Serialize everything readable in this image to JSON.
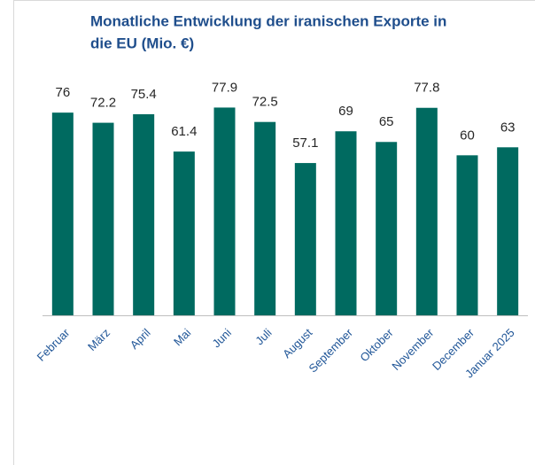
{
  "chart_data": {
    "type": "bar",
    "title": [
      "Monatliche Entwicklung der iranischen Exporte in",
      "die EU (Mio. €)"
    ],
    "categories": [
      "Februar",
      "März",
      "April",
      "Mai",
      "Juni",
      "Juli",
      "August",
      "September",
      "Oktober",
      "November",
      "December",
      "Januar 2025"
    ],
    "values": [
      76,
      72.2,
      75.4,
      61.4,
      77.9,
      72.5,
      57.1,
      69,
      65,
      77.8,
      60,
      63
    ],
    "color": "#006a60",
    "ylim": [
      0,
      90
    ]
  }
}
